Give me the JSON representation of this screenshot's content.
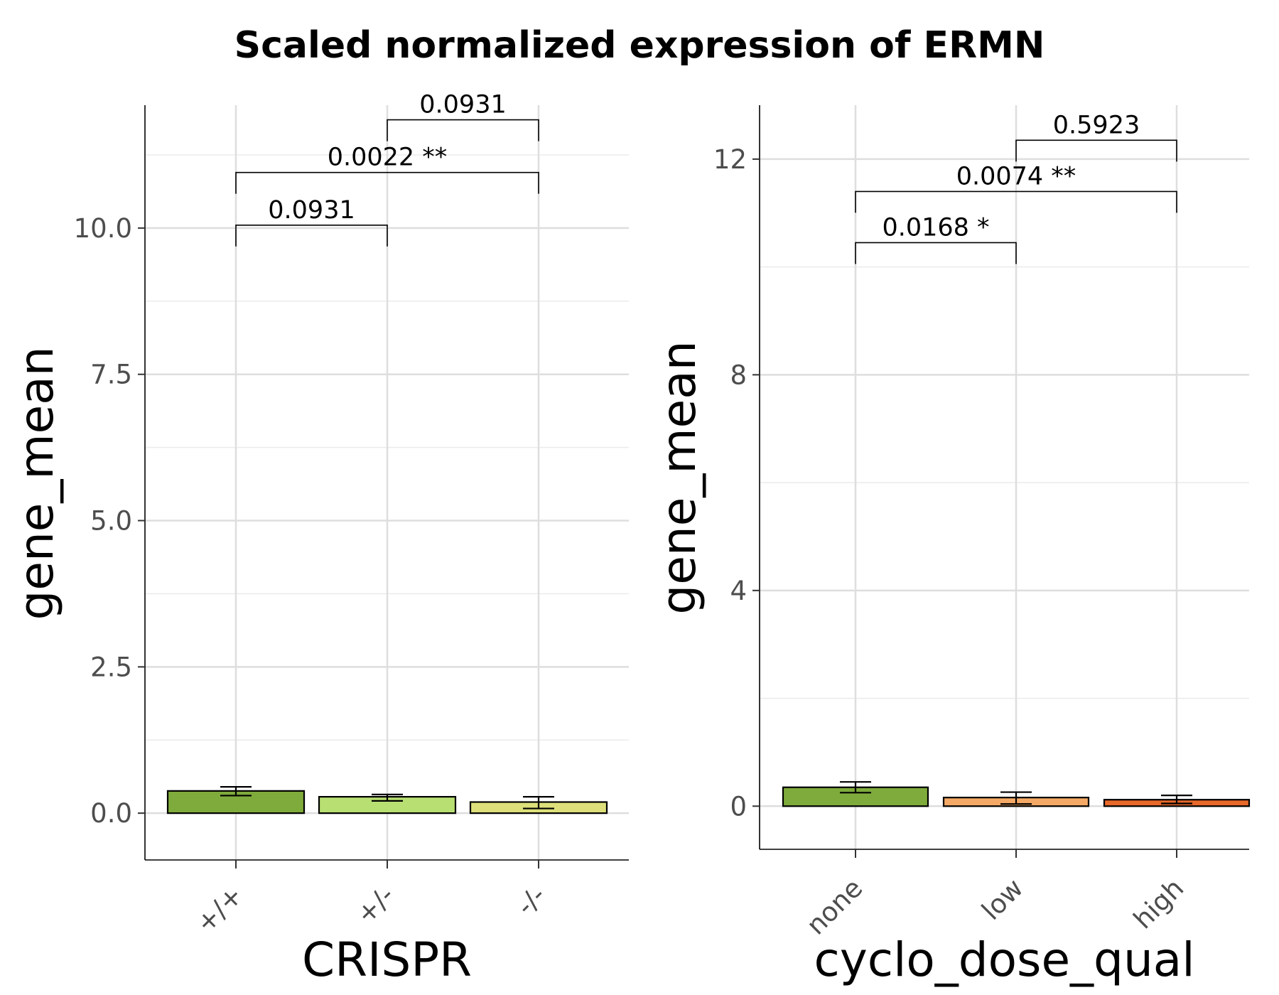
{
  "title": "Scaled normalized expression of ERMN",
  "chart_data": [
    {
      "type": "bar",
      "xlabel": "CRISPR",
      "ylabel": "gene_mean",
      "categories": [
        "+/+",
        "+/-",
        "-/-"
      ],
      "values": [
        0.38,
        0.28,
        0.19
      ],
      "error_low": [
        0.3,
        0.21,
        0.08
      ],
      "error_high": [
        0.45,
        0.32,
        0.28
      ],
      "colors": [
        "#7fab3c",
        "#b8df72",
        "#dde07a"
      ],
      "ylim": [
        -0.8,
        12.1
      ],
      "yticks": [
        0.0,
        2.5,
        5.0,
        7.5,
        10.0
      ],
      "ytick_labels": [
        "0.0",
        "2.5",
        "5.0",
        "7.5",
        "10.0"
      ],
      "grid": true,
      "comparisons": [
        {
          "from": 0,
          "to": 1,
          "y": 10.05,
          "label": "0.0931"
        },
        {
          "from": 0,
          "to": 2,
          "y": 10.95,
          "label": "0.0022 **"
        },
        {
          "from": 1,
          "to": 2,
          "y": 11.85,
          "label": "0.0931"
        }
      ]
    },
    {
      "type": "bar",
      "xlabel": "cyclo_dose_qual",
      "ylabel": "gene_mean",
      "categories": [
        "none",
        "low",
        "high"
      ],
      "values": [
        0.35,
        0.16,
        0.12
      ],
      "error_low": [
        0.25,
        0.04,
        0.05
      ],
      "error_high": [
        0.45,
        0.26,
        0.2
      ],
      "colors": [
        "#7fab3c",
        "#f5a966",
        "#e8692a"
      ],
      "ylim": [
        -0.8,
        13.0
      ],
      "yticks": [
        0,
        4,
        8,
        12
      ],
      "ytick_labels": [
        "0",
        "4",
        "8",
        "12"
      ],
      "grid": true,
      "comparisons": [
        {
          "from": 0,
          "to": 1,
          "y": 10.45,
          "label": "0.0168 *"
        },
        {
          "from": 0,
          "to": 2,
          "y": 11.4,
          "label": "0.0074 **"
        },
        {
          "from": 1,
          "to": 2,
          "y": 12.35,
          "label": "0.5923"
        }
      ]
    }
  ]
}
